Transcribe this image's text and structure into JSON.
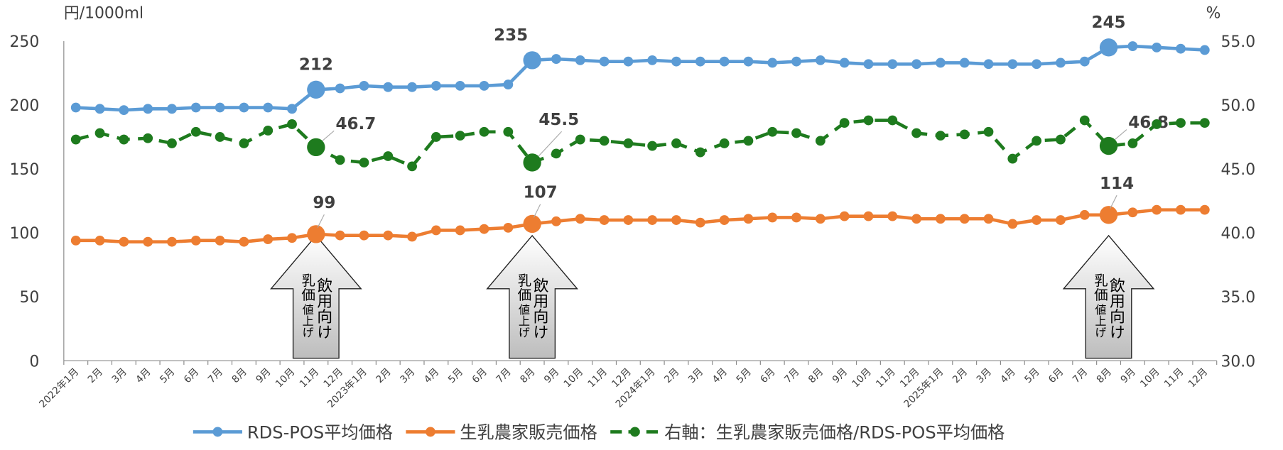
{
  "chart_data": {
    "type": "line",
    "y_label": "円/1000ml",
    "y2_label": "%",
    "categories": [
      "2022年1月",
      "2月",
      "3月",
      "4月",
      "5月",
      "6月",
      "7月",
      "8月",
      "9月",
      "10月",
      "11月",
      "12月",
      "2023年1月",
      "2月",
      "3月",
      "4月",
      "5月",
      "6月",
      "7月",
      "8月",
      "9月",
      "10月",
      "11月",
      "12月",
      "2024年1月",
      "2月",
      "3月",
      "4月",
      "5月",
      "6月",
      "7月",
      "8月",
      "9月",
      "10月",
      "11月",
      "12月",
      "2025年1月",
      "2月",
      "3月",
      "4月",
      "5月",
      "6月",
      "7月",
      "8月",
      "9月",
      "10月",
      "11月",
      "12月"
    ],
    "ylim": [
      0,
      250
    ],
    "yticks": [
      0,
      50,
      100,
      150,
      200,
      250
    ],
    "y2lim": [
      30,
      55
    ],
    "y2ticks": [
      {
        "value": 30,
        "label": "30.0"
      },
      {
        "value": 35,
        "label": "35.0"
      },
      {
        "value": 40,
        "label": "40.0"
      },
      {
        "value": 45,
        "label": "45.0"
      },
      {
        "value": 50,
        "label": "50.0"
      },
      {
        "value": 55,
        "label": "55.0"
      }
    ],
    "grid": false,
    "legend": "bottom",
    "series": [
      {
        "name": "RDS-POS平均価格",
        "color": "#5b9bd5",
        "values": [
          198,
          197,
          196,
          197,
          197,
          198,
          198,
          198,
          198,
          197,
          212,
          213,
          215,
          214,
          214,
          215,
          215,
          215,
          216,
          235,
          236,
          235,
          234,
          234,
          235,
          234,
          234,
          234,
          234,
          233,
          234,
          235,
          233,
          232,
          232,
          232,
          233,
          233,
          232,
          232,
          232,
          233,
          234,
          245,
          246,
          245,
          244,
          243
        ],
        "value_labels": [
          null,
          null,
          null,
          null,
          null,
          null,
          null,
          null,
          null,
          null,
          "212",
          null,
          null,
          null,
          null,
          null,
          null,
          null,
          null,
          "235",
          null,
          null,
          null,
          null,
          null,
          null,
          null,
          null,
          null,
          null,
          null,
          null,
          null,
          null,
          null,
          null,
          null,
          null,
          null,
          null,
          null,
          null,
          null,
          "245",
          null,
          null,
          null,
          null
        ]
      },
      {
        "name": "生乳農家販売価格",
        "color": "#ed7d31",
        "values": [
          94,
          94,
          93,
          93,
          93,
          94,
          94,
          93,
          95,
          96,
          99,
          98,
          98,
          98,
          97,
          102,
          102,
          103,
          104,
          107,
          109,
          111,
          110,
          110,
          110,
          110,
          108,
          110,
          111,
          112,
          112,
          111,
          113,
          113,
          113,
          111,
          111,
          111,
          111,
          107,
          110,
          110,
          114,
          114,
          116,
          118,
          118,
          118
        ],
        "value_labels": [
          null,
          null,
          null,
          null,
          null,
          null,
          null,
          null,
          null,
          null,
          "99",
          null,
          null,
          null,
          null,
          null,
          null,
          null,
          null,
          "107",
          null,
          null,
          null,
          null,
          null,
          null,
          null,
          null,
          null,
          null,
          null,
          null,
          null,
          null,
          null,
          null,
          null,
          null,
          null,
          null,
          null,
          null,
          null,
          "114",
          null,
          null,
          null,
          null
        ]
      },
      {
        "name": "右軸：生乳農家販売価格/RDS-POS平均価格",
        "color": "#1e7b1e",
        "axis": "y2",
        "dashed": true,
        "values": [
          47.3,
          47.8,
          47.3,
          47.4,
          47.0,
          47.9,
          47.5,
          47.0,
          48.0,
          48.5,
          46.7,
          45.7,
          45.5,
          46.0,
          45.2,
          47.5,
          47.6,
          47.9,
          47.9,
          45.5,
          46.2,
          47.3,
          47.2,
          47.0,
          46.8,
          47.0,
          46.3,
          47.0,
          47.2,
          47.9,
          47.8,
          47.2,
          48.6,
          48.8,
          48.8,
          47.8,
          47.6,
          47.7,
          47.9,
          45.8,
          47.2,
          47.3,
          48.8,
          46.8,
          47.0,
          48.5,
          48.6,
          48.6
        ],
        "value_labels": [
          null,
          null,
          null,
          null,
          null,
          null,
          null,
          null,
          null,
          null,
          "46.7",
          null,
          null,
          null,
          null,
          null,
          null,
          null,
          null,
          "45.5",
          null,
          null,
          null,
          null,
          null,
          null,
          null,
          null,
          null,
          null,
          null,
          null,
          null,
          null,
          null,
          null,
          null,
          null,
          null,
          null,
          null,
          null,
          null,
          "46.8",
          null,
          null,
          null,
          null
        ]
      }
    ],
    "annotations": [
      {
        "main": "飲用向け",
        "sub1": "乳価",
        "sub2": "値上げ"
      },
      {
        "main": "飲用向け",
        "sub1": "乳価",
        "sub2": "値上げ"
      },
      {
        "main": "飲用向け",
        "sub1": "乳価",
        "sub2": "値上げ"
      }
    ]
  }
}
